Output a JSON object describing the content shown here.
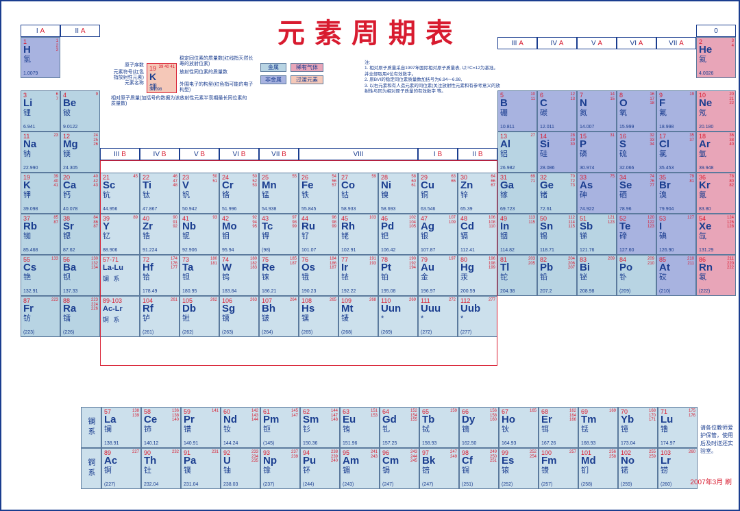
{
  "title": "元素周期表",
  "colors": {
    "border": "#1a3d8f",
    "title": "#d81b2f",
    "metal_bg": "#b8d4e3",
    "nonmetal_bg": "#a8b3e0",
    "noble_bg": "#e8a5b8",
    "trans_bg": "#f5c8b8",
    "lightblue_bg": "#cce0ec",
    "white": "#ffffff"
  },
  "group_labels": {
    "IA": "I A",
    "IIA": "II A",
    "IIIA": "III A",
    "IVA": "IV A",
    "VA": "V A",
    "VIA": "VI A",
    "VIIA": "VII A",
    "O": "0",
    "IIIB": "III B",
    "IVB": "IV B",
    "VB": "V B",
    "VIB": "VI B",
    "VIIB": "VII B",
    "VIII": "VIII",
    "IB": "I B",
    "IIB": "II B"
  },
  "legend": {
    "sample": {
      "num": "19",
      "sym": "K",
      "name": "钾",
      "mass": "39.098",
      "iso": "39 40 41"
    },
    "labels": {
      "l1": "原子序数",
      "l2": "元素符号(红色指放射性元素)",
      "l3": "元素名称",
      "l4": "相对原子质量(加括号的数据为该放射性元素半衰期最长同位素的质量数)",
      "l5": "稳定同位素的质量数(红线指天然长寿的放射位素)",
      "l6": "放射性同位素的质量数",
      "l7": "外围电子的构型(红色指可能的电子构型)"
    },
    "cats": {
      "metal": "金属",
      "noble": "稀有气体",
      "nonmetal": "非金属",
      "trans": "过渡元素"
    }
  },
  "notes": {
    "header": "注:",
    "n1": "1. 相对原子质量采自1997年国际相对原子质量表, 以¹²C=12为基准。并全部取用4位有效数字。",
    "n2": "2. 原BVI的稳定同位素质量数加括号为6.94～6.98,",
    "n3": "3. 以右元素和有人造元素的同位素(关注放射性元素和有参考意义的放射性与同为相对原子质量的有效数字 等。"
  },
  "side_note": "请各位教师爱护保管，使用后及时送还实验室。",
  "date": "2007年3月 刷",
  "elements": {
    "H": {
      "n": "1",
      "s": "H",
      "nm": "氢",
      "m": "1.0079",
      "c": "nonmetal",
      "iso": "1 2 3"
    },
    "He": {
      "n": "2",
      "s": "He",
      "nm": "氦",
      "m": "4.0026",
      "c": "noble",
      "iso": "3 4"
    },
    "Li": {
      "n": "3",
      "s": "Li",
      "nm": "锂",
      "m": "6.941",
      "c": "metal",
      "iso": "6 7"
    },
    "Be": {
      "n": "4",
      "s": "Be",
      "nm": "铍",
      "m": "9.0122",
      "c": "metal",
      "iso": "9"
    },
    "B": {
      "n": "5",
      "s": "B",
      "nm": "硼",
      "m": "10.811",
      "c": "nonmetal",
      "iso": "10 11"
    },
    "C": {
      "n": "6",
      "s": "C",
      "nm": "碳",
      "m": "12.011",
      "c": "nonmetal",
      "iso": "12 13"
    },
    "N": {
      "n": "7",
      "s": "N",
      "nm": "氮",
      "m": "14.007",
      "c": "nonmetal",
      "iso": "14 15"
    },
    "O": {
      "n": "8",
      "s": "O",
      "nm": "氧",
      "m": "15.999",
      "c": "nonmetal",
      "iso": "16 17 18"
    },
    "F": {
      "n": "9",
      "s": "F",
      "nm": "氟",
      "m": "18.998",
      "c": "nonmetal",
      "iso": "19"
    },
    "Ne": {
      "n": "10",
      "s": "Ne",
      "nm": "氖",
      "m": "20.180",
      "c": "noble",
      "iso": "20 21 22"
    },
    "Na": {
      "n": "11",
      "s": "Na",
      "nm": "钠",
      "m": "22.990",
      "c": "metal",
      "iso": "23"
    },
    "Mg": {
      "n": "12",
      "s": "Mg",
      "nm": "镁",
      "m": "24.305",
      "c": "metal",
      "iso": "24 25 26"
    },
    "Al": {
      "n": "13",
      "s": "Al",
      "nm": "铝",
      "m": "26.982",
      "c": "metal",
      "iso": "27"
    },
    "Si": {
      "n": "14",
      "s": "Si",
      "nm": "硅",
      "m": "28.086",
      "c": "nonmetal",
      "iso": "28 29 30"
    },
    "P": {
      "n": "15",
      "s": "P",
      "nm": "磷",
      "m": "30.974",
      "c": "nonmetal",
      "iso": "31"
    },
    "S": {
      "n": "16",
      "s": "S",
      "nm": "硫",
      "m": "32.066",
      "c": "nonmetal",
      "iso": "32 33 34 36"
    },
    "Cl": {
      "n": "17",
      "s": "Cl",
      "nm": "氯",
      "m": "35.453",
      "c": "nonmetal",
      "iso": "35 37"
    },
    "Ar": {
      "n": "18",
      "s": "Ar",
      "nm": "氩",
      "m": "39.948",
      "c": "noble",
      "iso": "36 38 40"
    },
    "K": {
      "n": "19",
      "s": "K",
      "nm": "钾",
      "m": "39.098",
      "c": "metal",
      "iso": "39 40 41"
    },
    "Ca": {
      "n": "20",
      "s": "Ca",
      "nm": "钙",
      "m": "40.078",
      "c": "metal",
      "iso": "40 42 43 44 46 48"
    },
    "Sc": {
      "n": "21",
      "s": "Sc",
      "nm": "钪",
      "m": "44.956",
      "c": "lightblue",
      "iso": "45"
    },
    "Ti": {
      "n": "22",
      "s": "Ti",
      "nm": "钛",
      "m": "47.867",
      "c": "lightblue",
      "iso": "46 47 48 49 50"
    },
    "V": {
      "n": "23",
      "s": "V",
      "nm": "钒",
      "m": "50.942",
      "c": "lightblue",
      "iso": "50 51"
    },
    "Cr": {
      "n": "24",
      "s": "Cr",
      "nm": "铬",
      "m": "51.996",
      "c": "lightblue",
      "iso": "50 52 53 54"
    },
    "Mn": {
      "n": "25",
      "s": "Mn",
      "nm": "锰",
      "m": "54.938",
      "c": "lightblue",
      "iso": "55"
    },
    "Fe": {
      "n": "26",
      "s": "Fe",
      "nm": "铁",
      "m": "55.845",
      "c": "lightblue",
      "iso": "54 56 57 58"
    },
    "Co": {
      "n": "27",
      "s": "Co",
      "nm": "钴",
      "m": "58.933",
      "c": "lightblue",
      "iso": "59"
    },
    "Ni": {
      "n": "28",
      "s": "Ni",
      "nm": "镍",
      "m": "58.693",
      "c": "lightblue",
      "iso": "58 60 61 62 64"
    },
    "Cu": {
      "n": "29",
      "s": "Cu",
      "nm": "铜",
      "m": "63.546",
      "c": "lightblue",
      "iso": "63 65"
    },
    "Zn": {
      "n": "30",
      "s": "Zn",
      "nm": "锌",
      "m": "65.39",
      "c": "lightblue",
      "iso": "64 66 67 68 70"
    },
    "Ga": {
      "n": "31",
      "s": "Ga",
      "nm": "镓",
      "m": "69.723",
      "c": "metal",
      "iso": "69 71"
    },
    "Ge": {
      "n": "32",
      "s": "Ge",
      "nm": "锗",
      "m": "72.61",
      "c": "metal",
      "iso": "70 72 73 74 76"
    },
    "As": {
      "n": "33",
      "s": "As",
      "nm": "砷",
      "m": "74.922",
      "c": "nonmetal",
      "iso": "75"
    },
    "Se": {
      "n": "34",
      "s": "Se",
      "nm": "硒",
      "m": "78.96",
      "c": "nonmetal",
      "iso": "74 76 77 78 80 82"
    },
    "Br": {
      "n": "35",
      "s": "Br",
      "nm": "溴",
      "m": "79.904",
      "c": "nonmetal",
      "iso": "79 81"
    },
    "Kr": {
      "n": "36",
      "s": "Kr",
      "nm": "氪",
      "m": "83.80",
      "c": "noble",
      "iso": "78 80 82 83 84 86"
    },
    "Rb": {
      "n": "37",
      "s": "Rb",
      "nm": "铷",
      "m": "85.468",
      "c": "metal",
      "iso": "85 87"
    },
    "Sr": {
      "n": "38",
      "s": "Sr",
      "nm": "锶",
      "m": "87.62",
      "c": "metal",
      "iso": "84 86 87 88"
    },
    "Y": {
      "n": "39",
      "s": "Y",
      "nm": "钇",
      "m": "88.906",
      "c": "lightblue",
      "iso": "89"
    },
    "Zr": {
      "n": "40",
      "s": "Zr",
      "nm": "锆",
      "m": "91.224",
      "c": "lightblue",
      "iso": "90 91 92 94 96"
    },
    "Nb": {
      "n": "41",
      "s": "Nb",
      "nm": "铌",
      "m": "92.906",
      "c": "lightblue",
      "iso": "93"
    },
    "Mo": {
      "n": "42",
      "s": "Mo",
      "nm": "钼",
      "m": "95.94",
      "c": "lightblue",
      "iso": "92 94 95 96 97 98 100"
    },
    "Tc": {
      "n": "43",
      "s": "Tc",
      "nm": "锝",
      "m": "(98)",
      "c": "lightblue",
      "iso": "97 98 99"
    },
    "Ru": {
      "n": "44",
      "s": "Ru",
      "nm": "钌",
      "m": "101.07",
      "c": "lightblue",
      "iso": "96 98 99 100 101 102 104"
    },
    "Rh": {
      "n": "45",
      "s": "Rh",
      "nm": "铑",
      "m": "102.91",
      "c": "lightblue",
      "iso": "103"
    },
    "Pd": {
      "n": "46",
      "s": "Pd",
      "nm": "钯",
      "m": "106.42",
      "c": "lightblue",
      "iso": "102 104 105 106 108 110"
    },
    "Ag": {
      "n": "47",
      "s": "Ag",
      "nm": "银",
      "m": "107.87",
      "c": "lightblue",
      "iso": "107 109"
    },
    "Cd": {
      "n": "48",
      "s": "Cd",
      "nm": "镉",
      "m": "112.41",
      "c": "lightblue",
      "iso": "106 108 110 111 112 113 114 116"
    },
    "In": {
      "n": "49",
      "s": "In",
      "nm": "铟",
      "m": "114.82",
      "c": "metal",
      "iso": "113 115"
    },
    "Sn": {
      "n": "50",
      "s": "Sn",
      "nm": "锡",
      "m": "118.71",
      "c": "metal",
      "iso": "112 114 115 116 117 118 119 120 122 124"
    },
    "Sb": {
      "n": "51",
      "s": "Sb",
      "nm": "锑",
      "m": "121.76",
      "c": "metal",
      "iso": "121 123"
    },
    "Te": {
      "n": "52",
      "s": "Te",
      "nm": "碲",
      "m": "127.60",
      "c": "nonmetal",
      "iso": "120 122 123 124 125 126 128 130"
    },
    "I": {
      "n": "53",
      "s": "I",
      "nm": "碘",
      "m": "126.90",
      "c": "nonmetal",
      "iso": "127"
    },
    "Xe": {
      "n": "54",
      "s": "Xe",
      "nm": "氙",
      "m": "131.29",
      "c": "noble",
      "iso": "124 126 128 129 130 131 132 134 136"
    },
    "Cs": {
      "n": "55",
      "s": "Cs",
      "nm": "铯",
      "m": "132.91",
      "c": "metal",
      "iso": "133"
    },
    "Ba": {
      "n": "56",
      "s": "Ba",
      "nm": "钡",
      "m": "137.33",
      "c": "metal",
      "iso": "130 132 134 135 136 137 138"
    },
    "LaLu": {
      "n": "57-71",
      "s": "La-Lu",
      "nm": "镧 系",
      "m": "",
      "c": "lightblue"
    },
    "Hf": {
      "n": "72",
      "s": "Hf",
      "nm": "铪",
      "m": "178.49",
      "c": "lightblue",
      "iso": "174 176 177 178 179 180"
    },
    "Ta": {
      "n": "73",
      "s": "Ta",
      "nm": "钽",
      "m": "180.95",
      "c": "lightblue",
      "iso": "180 181"
    },
    "W": {
      "n": "74",
      "s": "W",
      "nm": "钨",
      "m": "183.84",
      "c": "lightblue",
      "iso": "180 182 183 184 186"
    },
    "Re": {
      "n": "75",
      "s": "Re",
      "nm": "铼",
      "m": "186.21",
      "c": "lightblue",
      "iso": "185 187"
    },
    "Os": {
      "n": "76",
      "s": "Os",
      "nm": "锇",
      "m": "190.23",
      "c": "lightblue",
      "iso": "184 186 187 188 189 190 192"
    },
    "Ir": {
      "n": "77",
      "s": "Ir",
      "nm": "铱",
      "m": "192.22",
      "c": "lightblue",
      "iso": "191 193"
    },
    "Pt": {
      "n": "78",
      "s": "Pt",
      "nm": "铂",
      "m": "195.08",
      "c": "lightblue",
      "iso": "190 192 194 195 196 198"
    },
    "Au": {
      "n": "79",
      "s": "Au",
      "nm": "金",
      "m": "196.97",
      "c": "lightblue",
      "iso": "197"
    },
    "Hg": {
      "n": "80",
      "s": "Hg",
      "nm": "汞",
      "m": "200.59",
      "c": "lightblue",
      "iso": "196 198 199 200 201 202 204"
    },
    "Tl": {
      "n": "81",
      "s": "Tl",
      "nm": "铊",
      "m": "204.38",
      "c": "metal",
      "iso": "203 205"
    },
    "Pb": {
      "n": "82",
      "s": "Pb",
      "nm": "铅",
      "m": "207.2",
      "c": "metal",
      "iso": "204 206 207 208"
    },
    "Bi": {
      "n": "83",
      "s": "Bi",
      "nm": "铋",
      "m": "208.98",
      "c": "metal",
      "iso": "209"
    },
    "Po": {
      "n": "84",
      "s": "Po",
      "nm": "钋",
      "m": "(209)",
      "c": "metal",
      "iso": "209 210"
    },
    "At": {
      "n": "85",
      "s": "At",
      "nm": "砹",
      "m": "(210)",
      "c": "nonmetal",
      "iso": "210 211"
    },
    "Rn": {
      "n": "86",
      "s": "Rn",
      "nm": "氡",
      "m": "(222)",
      "c": "noble",
      "iso": "211 220 222"
    },
    "Fr": {
      "n": "87",
      "s": "Fr",
      "nm": "钫",
      "m": "(223)",
      "c": "metal",
      "iso": "223"
    },
    "Ra": {
      "n": "88",
      "s": "Ra",
      "nm": "镭",
      "m": "(226)",
      "c": "metal",
      "iso": "223 224 226 228"
    },
    "AcLr": {
      "n": "89-103",
      "s": "Ac-Lr",
      "nm": "锕 系",
      "m": "",
      "c": "lightblue"
    },
    "Rf": {
      "n": "104",
      "s": "Rf",
      "nm": "𬬻",
      "m": "(261)",
      "c": "lightblue",
      "iso": "261"
    },
    "Db": {
      "n": "105",
      "s": "Db",
      "nm": "𬭊",
      "m": "(262)",
      "c": "lightblue",
      "iso": "262"
    },
    "Sg": {
      "n": "106",
      "s": "Sg",
      "nm": "𬭳",
      "m": "(263)",
      "c": "lightblue",
      "iso": "263"
    },
    "Bh": {
      "n": "107",
      "s": "Bh",
      "nm": "𬭛",
      "m": "(264)",
      "c": "lightblue",
      "iso": "264"
    },
    "Hs": {
      "n": "108",
      "s": "Hs",
      "nm": "𬭶",
      "m": "(265)",
      "c": "lightblue",
      "iso": "265"
    },
    "Mt": {
      "n": "109",
      "s": "Mt",
      "nm": "鿏",
      "m": "(268)",
      "c": "lightblue",
      "iso": "268"
    },
    "Uun": {
      "n": "110",
      "s": "Uun",
      "nm": "*",
      "m": "(269)",
      "c": "lightblue",
      "iso": "269"
    },
    "Uuu": {
      "n": "111",
      "s": "Uuu",
      "nm": "*",
      "m": "(272)",
      "c": "lightblue",
      "iso": "272"
    },
    "Uub": {
      "n": "112",
      "s": "Uub",
      "nm": "*",
      "m": "(277)",
      "c": "lightblue",
      "iso": "277"
    }
  },
  "lanthanides": {
    "label": "镧系",
    "items": {
      "La": {
        "n": "57",
        "s": "La",
        "nm": "镧",
        "m": "138.91",
        "iso": "138 139"
      },
      "Ce": {
        "n": "58",
        "s": "Ce",
        "nm": "铈",
        "m": "140.12",
        "iso": "136 138 140 142"
      },
      "Pr": {
        "n": "59",
        "s": "Pr",
        "nm": "镨",
        "m": "140.91",
        "iso": "141"
      },
      "Nd": {
        "n": "60",
        "s": "Nd",
        "nm": "钕",
        "m": "144.24",
        "iso": "142 143 144 145 146 148 150"
      },
      "Pm": {
        "n": "61",
        "s": "Pm",
        "nm": "钷",
        "m": "(145)",
        "iso": "145 147"
      },
      "Sm": {
        "n": "62",
        "s": "Sm",
        "nm": "钐",
        "m": "150.36",
        "iso": "144 147 148 149 150 152 154"
      },
      "Eu": {
        "n": "63",
        "s": "Eu",
        "nm": "铕",
        "m": "151.96",
        "iso": "151 153"
      },
      "Gd": {
        "n": "64",
        "s": "Gd",
        "nm": "钆",
        "m": "157.25",
        "iso": "152 154 155 156 157 158 160"
      },
      "Tb": {
        "n": "65",
        "s": "Tb",
        "nm": "铽",
        "m": "158.93",
        "iso": "159"
      },
      "Dy": {
        "n": "66",
        "s": "Dy",
        "nm": "镝",
        "m": "162.50",
        "iso": "156 158 160 161 162 163 164"
      },
      "Ho": {
        "n": "67",
        "s": "Ho",
        "nm": "钬",
        "m": "164.93",
        "iso": "165"
      },
      "Er": {
        "n": "68",
        "s": "Er",
        "nm": "铒",
        "m": "167.26",
        "iso": "162 164 166 167 168 170"
      },
      "Tm": {
        "n": "69",
        "s": "Tm",
        "nm": "铥",
        "m": "168.93",
        "iso": "169"
      },
      "Yb": {
        "n": "70",
        "s": "Yb",
        "nm": "镱",
        "m": "173.04",
        "iso": "168 170 171 172 173 174 176"
      },
      "Lu": {
        "n": "71",
        "s": "Lu",
        "nm": "镥",
        "m": "174.97",
        "iso": "175 176"
      }
    }
  },
  "actinides": {
    "label": "锕系",
    "items": {
      "Ac": {
        "n": "89",
        "s": "Ac",
        "nm": "锕",
        "m": "(227)",
        "iso": "227"
      },
      "Th": {
        "n": "90",
        "s": "Th",
        "nm": "钍",
        "m": "232.04",
        "iso": "232"
      },
      "Pa": {
        "n": "91",
        "s": "Pa",
        "nm": "镤",
        "m": "231.04",
        "iso": "231"
      },
      "U": {
        "n": "92",
        "s": "U",
        "nm": "铀",
        "m": "238.03",
        "iso": "233 234 235 236 238"
      },
      "Np": {
        "n": "93",
        "s": "Np",
        "nm": "镎",
        "m": "(237)",
        "iso": "237 239"
      },
      "Pu": {
        "n": "94",
        "s": "Pu",
        "nm": "钚",
        "m": "(244)",
        "iso": "238 239 240 241 242 244"
      },
      "Am": {
        "n": "95",
        "s": "Am",
        "nm": "镅",
        "m": "(243)",
        "iso": "241 243"
      },
      "Cm": {
        "n": "96",
        "s": "Cm",
        "nm": "锔",
        "m": "(247)",
        "iso": "243 244 245 246 247 248"
      },
      "Bk": {
        "n": "97",
        "s": "Bk",
        "nm": "锫",
        "m": "(247)",
        "iso": "247 249"
      },
      "Cf": {
        "n": "98",
        "s": "Cf",
        "nm": "锎",
        "m": "(251)",
        "iso": "249 250 251 252"
      },
      "Es": {
        "n": "99",
        "s": "Es",
        "nm": "锿",
        "m": "(252)",
        "iso": "252 254"
      },
      "Fm": {
        "n": "100",
        "s": "Fm",
        "nm": "镄",
        "m": "(257)",
        "iso": "257"
      },
      "Md": {
        "n": "101",
        "s": "Md",
        "nm": "钔",
        "m": "(258)",
        "iso": "256 258"
      },
      "No": {
        "n": "102",
        "s": "No",
        "nm": "锘",
        "m": "(259)",
        "iso": "255 259"
      },
      "Lr": {
        "n": "103",
        "s": "Lr",
        "nm": "铹",
        "m": "(260)",
        "iso": "260"
      }
    }
  },
  "layout": [
    [
      "H",
      null,
      null,
      null,
      null,
      null,
      null,
      null,
      null,
      null,
      null,
      null,
      null,
      null,
      null,
      null,
      null,
      "He"
    ],
    [
      "Li",
      "Be",
      null,
      null,
      null,
      null,
      null,
      null,
      null,
      null,
      null,
      null,
      "B",
      "C",
      "N",
      "O",
      "F",
      "Ne"
    ],
    [
      "Na",
      "Mg",
      null,
      null,
      null,
      null,
      null,
      null,
      null,
      null,
      null,
      null,
      "Al",
      "Si",
      "P",
      "S",
      "Cl",
      "Ar"
    ],
    [
      "K",
      "Ca",
      "Sc",
      "Ti",
      "V",
      "Cr",
      "Mn",
      "Fe",
      "Co",
      "Ni",
      "Cu",
      "Zn",
      "Ga",
      "Ge",
      "As",
      "Se",
      "Br",
      "Kr"
    ],
    [
      "Rb",
      "Sr",
      "Y",
      "Zr",
      "Nb",
      "Mo",
      "Tc",
      "Ru",
      "Rh",
      "Pd",
      "Ag",
      "Cd",
      "In",
      "Sn",
      "Sb",
      "Te",
      "I",
      "Xe"
    ],
    [
      "Cs",
      "Ba",
      "LaLu",
      "Hf",
      "Ta",
      "W",
      "Re",
      "Os",
      "Ir",
      "Pt",
      "Au",
      "Hg",
      "Tl",
      "Pb",
      "Bi",
      "Po",
      "At",
      "Rn"
    ],
    [
      "Fr",
      "Ra",
      "AcLr",
      "Rf",
      "Db",
      "Sg",
      "Bh",
      "Hs",
      "Mt",
      "Uun",
      "Uuu",
      "Uub",
      null,
      null,
      null,
      null,
      null,
      null
    ]
  ]
}
